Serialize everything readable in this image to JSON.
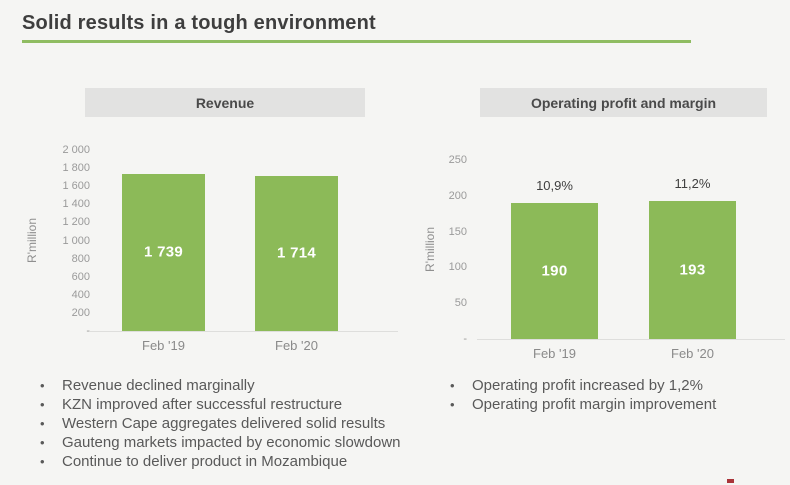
{
  "slide": {
    "title": "Solid results in a tough environment",
    "accent_color": "#8FBC61",
    "background_color": "#F5F5F3",
    "header_bg_color": "#E2E2E1",
    "logo_fragment_color": "#A93439"
  },
  "chart_data": [
    {
      "type": "bar",
      "title": "Revenue",
      "categories": [
        "Feb '19",
        "Feb '20"
      ],
      "values": [
        1739,
        1714
      ],
      "value_labels": [
        "1 739",
        "1 714"
      ],
      "xlabel": "",
      "ylabel": "R'million",
      "ylim": [
        0,
        2000
      ],
      "yticks": [
        "2 000",
        "1 800",
        "1 600",
        "1 400",
        "1 200",
        "1 000",
        "800",
        "600",
        "400",
        "200",
        "-"
      ],
      "bar_color": "#8CBA58",
      "grid": false,
      "legend": "none"
    },
    {
      "type": "bar",
      "title": "Operating profit and margin",
      "categories": [
        "Feb '19",
        "Feb '20"
      ],
      "values": [
        190,
        193
      ],
      "value_labels": [
        "190",
        "193"
      ],
      "top_labels": [
        "10,9%",
        "11,2%"
      ],
      "xlabel": "",
      "ylabel": "R'million",
      "ylim": [
        0,
        250
      ],
      "yticks": [
        "250",
        "200",
        "150",
        "100",
        "50",
        "-"
      ],
      "bar_color": "#8CBA58",
      "grid": false,
      "legend": "none"
    }
  ],
  "notes_left": [
    "Revenue declined marginally",
    "KZN improved after successful restructure",
    "Western Cape aggregates delivered solid results",
    "Gauteng markets impacted by economic slowdown",
    "Continue to deliver product in Mozambique"
  ],
  "notes_right": [
    "Operating profit increased by 1,2%",
    "Operating profit margin improvement"
  ]
}
